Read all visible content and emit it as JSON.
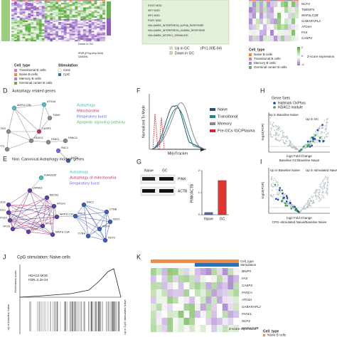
{
  "a": {
    "annotations": [
      "Down in GC",
      "IFNR (IFNg-resp Mod)",
      "SAMD9L"
    ],
    "cell_type_title": "Cell_type",
    "cell_types": [
      "Transitional B cells",
      "Naive B cells",
      "Memory B cells",
      "Germinal center B cells"
    ],
    "stimulation_title": "Stimulation",
    "stimulations": [
      "none",
      "CpG"
    ]
  },
  "b": {
    "terms": [
      "STAT2 MOD",
      "IRF7 MOD",
      "IRF1 MOD",
      "PSIF1 MOD",
      "HALLMARK_INTERFERON_ALPHA_RESPONSE",
      "HALLMARK_INTERFERON_GAMMA_RESPONSE",
      "HALLMARK_MTORC1_SIGNALING"
    ],
    "legend": [
      "Up in GC",
      "Down in GC"
    ],
    "pvalue": "(P=1.00E-04)"
  },
  "c": {
    "genes": [
      "NCF4",
      "TMEM74",
      "MAP1LC3B",
      "GABARAPL2",
      "ATG4A",
      "FAS",
      "CASP3"
    ],
    "cell_type_title": "Cell_type",
    "cell_types": [
      "Naive B cells",
      "Transitional B cells",
      "Memory B cells",
      "Germinal center B cells"
    ],
    "scale_title": "Z-score expression",
    "scale_labels": [
      2,
      0,
      -2
    ]
  },
  "panel_labels": [
    "D",
    "E",
    "F",
    "G",
    "H",
    "I",
    "J",
    "K"
  ],
  "d": {
    "title": "Autophagy related genes",
    "nodes": [
      "MAP1LC3B",
      "ATG4A",
      "TGM2",
      "CASP3",
      "FAS",
      "HDAC1",
      "TP73",
      "FANCL",
      "FANCA",
      "RAC1",
      "NCF4"
    ],
    "legend": [
      "Autophagy",
      "Mitochondria",
      "Respiratory burst",
      "Apoptotic signaling pathway"
    ]
  },
  "e": {
    "title": "Non. Canonical Autophagy module genes",
    "nodes": [
      "KIAA0226",
      "UVRAG",
      "BECN1",
      "ATG14",
      "ATG101",
      "ATG16L1",
      "ATG12",
      "ATG5",
      "ATG7",
      "ATG3",
      "MAP1LC3C",
      "MAP1LC3A",
      "RAC1",
      "RAC2",
      "CYBB",
      "NCF1",
      "NCF4",
      "CYBA",
      "NCF2"
    ],
    "legend": [
      "Autophagy",
      "Autophagy of mitochondria",
      "Respiratory burst"
    ]
  },
  "f": {
    "y_label": "Normalized To Mode",
    "x_label": "MitoTracker",
    "legend": [
      "Naive",
      "Transitional",
      "Memory",
      "Pre-GCs /GC/Plasma"
    ]
  },
  "g": {
    "blot_lanes": [
      "Naive",
      "GC"
    ],
    "blot_rows": [
      "PINK",
      "ACTB"
    ]
  },
  "chart_data": {
    "type": "bar",
    "y_label": "PINK/ACTB",
    "categories": [
      "Naive",
      "GC"
    ],
    "values": [
      0.1,
      1.55
    ],
    "colors": [
      "#4a6cb0",
      "#e8322d"
    ],
    "ylim": [
      0,
      2
    ],
    "yticks": [
      0,
      1,
      2
    ]
  },
  "h": {
    "legend_title": "Gene Sets",
    "legend": [
      "Hallmark OxPhos",
      "HDAC2 module"
    ],
    "left": "Up in Baseline Naive",
    "right": "Up in GC",
    "x_label": [
      "log2 Fold Change",
      "Baseline GC/Baseline Naive"
    ],
    "y_label": "-log10(FDR)"
  },
  "i": {
    "left": "Up in Baseline Naive",
    "right": "Up in stimulated Naive",
    "x_label": [
      "log2 Fold Change",
      "CPG–stimulated Naive/Baseline Naive"
    ],
    "y_label": "-log10(FDR)"
  },
  "j": {
    "title": "CpG stimulation: Naive cells",
    "gene_set": "HDAC2.MOD",
    "fdr": "FDR=2.2e-04",
    "y_label": "Enrichment score",
    "left": "Up in baseline Naive",
    "right": "Up in CpG stimulated Naive"
  },
  "k": {
    "tracks": [
      "Cell_type",
      "Stimulation"
    ],
    "genes": [
      "BNIP3",
      "FAS",
      "CASP3",
      "FANCA",
      "ATG4A",
      "GABARAPL2",
      "FANCL",
      "NCF4",
      "MAP1LC3B"
    ],
    "legend_title": "Cell_type",
    "legend": [
      "Naive B cells"
    ],
    "scale_title": "Z-score expression"
  }
}
